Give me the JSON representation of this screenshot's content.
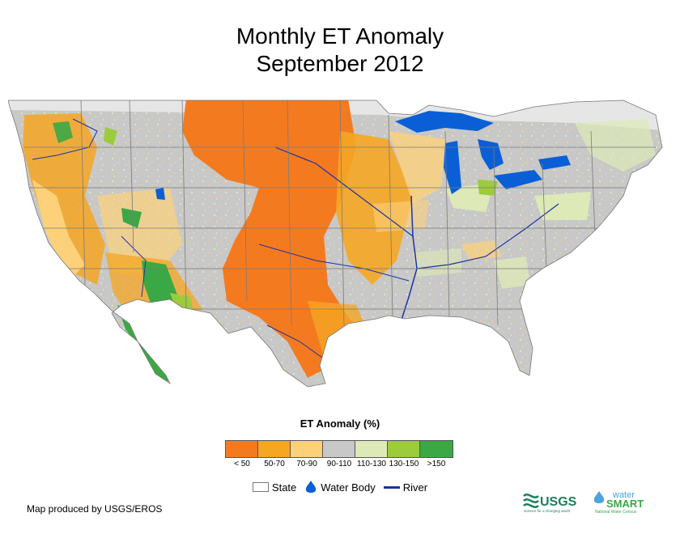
{
  "title_line1": "Monthly ET Anomaly",
  "title_line2": "September 2012",
  "legend": {
    "title": "ET Anomaly (%)",
    "classes": [
      {
        "label": "< 50",
        "color": "#f47a20"
      },
      {
        "label": "50-70",
        "color": "#f5a623"
      },
      {
        "label": "70-90",
        "color": "#fdd17a"
      },
      {
        "label": "90-110",
        "color": "#c8c8c8"
      },
      {
        "label": "110-130",
        "color": "#dde9b6"
      },
      {
        "label": "130-150",
        "color": "#9ccb3c"
      },
      {
        "label": ">150",
        "color": "#3aa845"
      }
    ]
  },
  "map_key": {
    "state_label": "State",
    "water_label": "Water Body",
    "river_label": "River",
    "water_color": "#0a5fd6",
    "river_color": "#1a33a3"
  },
  "credit": "Map produced by USGS/EROS",
  "logos": {
    "usgs": "USGS",
    "usgs_tagline": "science for a changing world",
    "water": "water",
    "smart": "SMART",
    "census": "National Water Census"
  }
}
